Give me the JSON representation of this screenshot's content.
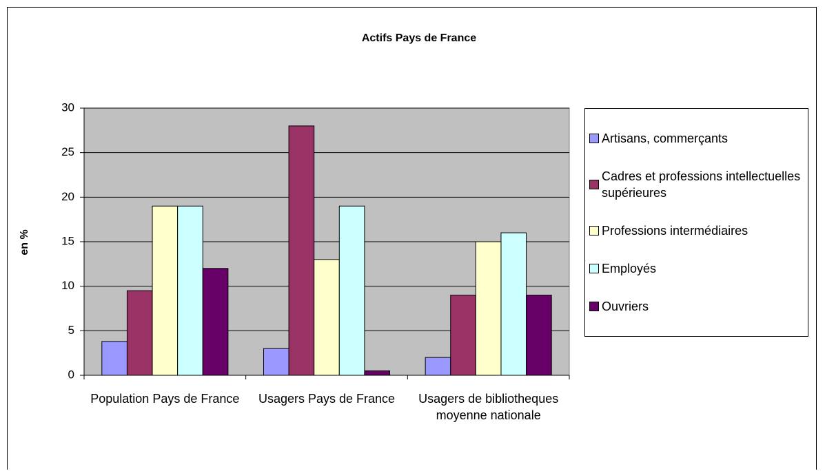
{
  "chart_data": {
    "type": "bar",
    "title": "Actifs Pays de France",
    "ylabel": "en %",
    "categories": [
      "Population Pays de France",
      "Usagers Pays de France",
      "Usagers de bibliotheques moyenne nationale"
    ],
    "series": [
      {
        "name": "Artisans, commerçants",
        "color": "#9999ff",
        "values": [
          3.8,
          3,
          2
        ]
      },
      {
        "name": "Cadres et professions intellectuelles supérieures",
        "color": "#993366",
        "values": [
          9.5,
          28,
          9
        ]
      },
      {
        "name": "Professions intermédiaires",
        "color": "#ffffcc",
        "values": [
          19,
          13,
          15
        ]
      },
      {
        "name": "Employés",
        "color": "#ccffff",
        "values": [
          19,
          19,
          16
        ]
      },
      {
        "name": "Ouvriers",
        "color": "#660066",
        "values": [
          12,
          0.5,
          9
        ]
      }
    ],
    "ylim": [
      0,
      30
    ],
    "yticks": [
      0,
      5,
      10,
      15,
      20,
      25,
      30
    ],
    "grid": true,
    "legend": "right",
    "plot_background": "#c0c0c0"
  }
}
